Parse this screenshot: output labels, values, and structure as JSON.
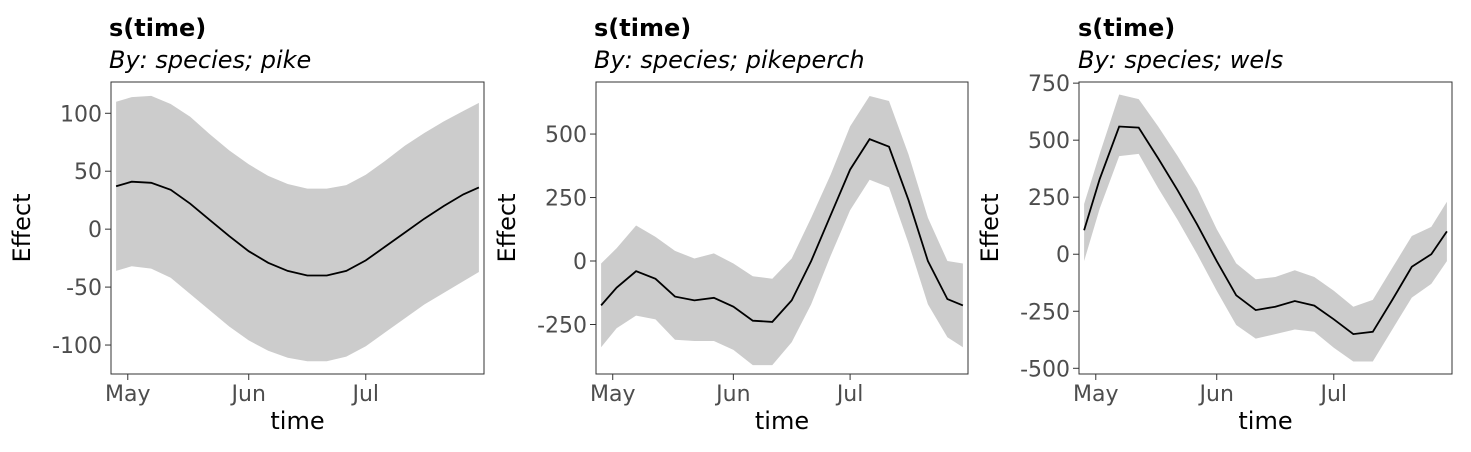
{
  "colors": {
    "ribbon": "#cccccc",
    "line": "#000000",
    "tick_text": "#4d4d4d"
  },
  "chart_data": [
    {
      "type": "line",
      "title": "s(time)",
      "subtitle": "By: species; pike",
      "xlabel": "time",
      "ylabel": "Effect",
      "x_ticks": [
        "May",
        "Jun",
        "Jul"
      ],
      "x_tick_values": [
        1,
        32,
        62
      ],
      "y_ticks": [
        "100",
        "50",
        "0",
        "-50",
        "-100"
      ],
      "y_tick_values": [
        100,
        50,
        0,
        -50,
        -100
      ],
      "xlim": [
        -3.3,
        92.3
      ],
      "ylim": [
        -125,
        127
      ],
      "x": [
        -2,
        2,
        7,
        12,
        17,
        22,
        27,
        32,
        37,
        42,
        47,
        52,
        57,
        62,
        67,
        72,
        77,
        82,
        87,
        91
      ],
      "fit": [
        37,
        41,
        40,
        34,
        22,
        8,
        -6,
        -19,
        -29,
        -36,
        -40,
        -40,
        -36,
        -27,
        -15,
        -3,
        9,
        20,
        30,
        36
      ],
      "upper": [
        110,
        114,
        115,
        108,
        97,
        82,
        68,
        56,
        46,
        39,
        35,
        35,
        38,
        47,
        59,
        72,
        83,
        93,
        102,
        109
      ],
      "lower": [
        -36,
        -32,
        -34,
        -42,
        -56,
        -70,
        -84,
        -96,
        -105,
        -111,
        -114,
        -114,
        -110,
        -101,
        -89,
        -77,
        -65,
        -55,
        -45,
        -37
      ],
      "grid": false,
      "legend": "none"
    },
    {
      "type": "line",
      "title": "s(time)",
      "subtitle": "By: species; pikeperch",
      "xlabel": "time",
      "ylabel": "Effect",
      "x_ticks": [
        "May",
        "Jun",
        "Jul"
      ],
      "x_tick_values": [
        1,
        32,
        62
      ],
      "y_ticks": [
        "500",
        "250",
        "0",
        "-250"
      ],
      "y_tick_values": [
        500,
        250,
        0,
        -250
      ],
      "xlim": [
        -3.3,
        92.3
      ],
      "ylim": [
        -445,
        705
      ],
      "x": [
        -2,
        2,
        7,
        12,
        17,
        22,
        27,
        32,
        37,
        42,
        47,
        52,
        57,
        62,
        67,
        72,
        77,
        82,
        87,
        91
      ],
      "fit": [
        -175,
        -105,
        -40,
        -70,
        -140,
        -155,
        -145,
        -180,
        -235,
        -240,
        -155,
        0,
        180,
        360,
        480,
        450,
        240,
        0,
        -150,
        -175
      ],
      "upper": [
        -10,
        50,
        140,
        95,
        40,
        10,
        30,
        -10,
        -60,
        -70,
        10,
        170,
        340,
        530,
        650,
        630,
        420,
        170,
        0,
        -10
      ],
      "lower": [
        -340,
        -265,
        -215,
        -230,
        -310,
        -315,
        -315,
        -350,
        -410,
        -410,
        -320,
        -170,
        20,
        200,
        320,
        290,
        70,
        -170,
        -300,
        -340
      ],
      "grid": false,
      "legend": "none"
    },
    {
      "type": "line",
      "title": "s(time)",
      "subtitle": "By: species; wels",
      "xlabel": "time",
      "ylabel": "Effect",
      "x_ticks": [
        "May",
        "Jun",
        "Jul"
      ],
      "x_tick_values": [
        1,
        32,
        62
      ],
      "y_ticks": [
        "750",
        "500",
        "250",
        "0",
        "-250",
        "-500"
      ],
      "y_tick_values": [
        750,
        500,
        250,
        0,
        -250,
        -500
      ],
      "xlim": [
        -3.3,
        92.3
      ],
      "ylim": [
        -525,
        755
      ],
      "x": [
        -2,
        2,
        7,
        12,
        17,
        22,
        27,
        32,
        37,
        42,
        47,
        52,
        57,
        62,
        67,
        72,
        77,
        82,
        87,
        91
      ],
      "fit": [
        105,
        330,
        560,
        555,
        420,
        280,
        130,
        -30,
        -180,
        -245,
        -230,
        -205,
        -225,
        -285,
        -350,
        -340,
        -200,
        -55,
        0,
        100
      ],
      "upper": [
        220,
        440,
        700,
        680,
        560,
        430,
        290,
        110,
        -40,
        -110,
        -100,
        -70,
        -100,
        -160,
        -230,
        -200,
        -60,
        80,
        120,
        230
      ],
      "lower": [
        -30,
        200,
        430,
        440,
        290,
        150,
        0,
        -160,
        -310,
        -370,
        -350,
        -330,
        -340,
        -410,
        -470,
        -470,
        -330,
        -190,
        -130,
        -30
      ],
      "grid": false,
      "legend": "none"
    }
  ]
}
